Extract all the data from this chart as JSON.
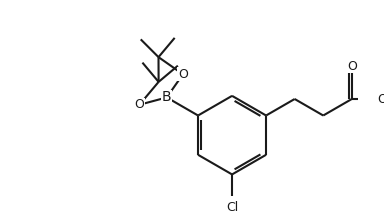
{
  "bg_color": "#ffffff",
  "line_color": "#1a1a1a",
  "line_width": 1.5,
  "font_size": 8.5,
  "figsize": [
    3.84,
    2.2
  ],
  "dpi": 100,
  "xlim": [
    -5.5,
    5.2
  ],
  "ylim": [
    -3.2,
    3.8
  ]
}
